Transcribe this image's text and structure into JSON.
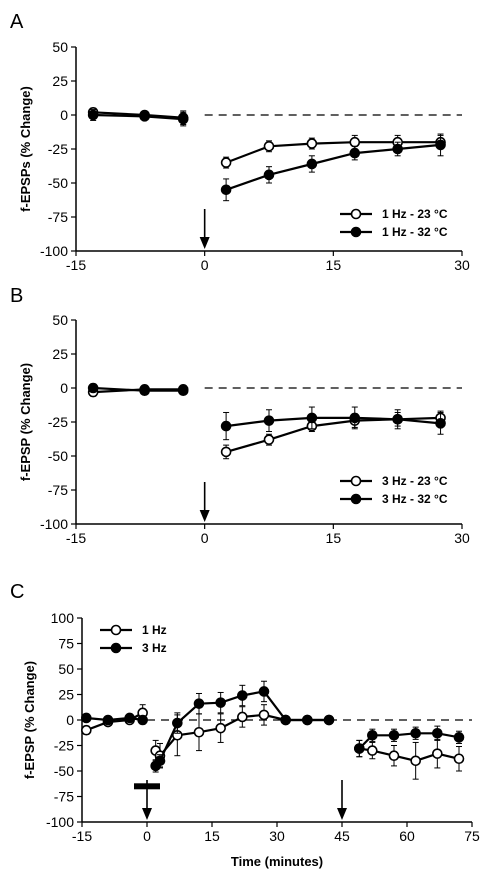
{
  "figure": {
    "background": "#ffffff",
    "ink": "#000000",
    "open_marker_fill": "#ffffff",
    "filled_marker_fill": "#000000"
  },
  "chart_data": [
    {
      "panel": "A",
      "type": "line",
      "xlabel": "",
      "ylabel": "f-EPSPs (% Change)",
      "xlim": [
        -15,
        30
      ],
      "ylim": [
        -100,
        50
      ],
      "xticks": [
        "-15",
        "0",
        "15",
        "30"
      ],
      "yticks": [
        "50",
        "25",
        "0",
        "-25",
        "-50",
        "-75",
        "-100"
      ],
      "baseline_dashed_at": 0,
      "arrows": [
        0
      ],
      "legend_position": "bottom-right",
      "series": [
        {
          "name": "1 Hz - 23 °C",
          "marker": "open-circle",
          "x": [
            -13,
            -7,
            -2.5,
            2.5,
            7.5,
            12.5,
            17.5,
            22.5,
            27.5
          ],
          "y": [
            2,
            0,
            -2,
            -35,
            -23,
            -21,
            -20,
            -20,
            -20
          ],
          "err": [
            3,
            2,
            5,
            4,
            4,
            4,
            5,
            5,
            5
          ]
        },
        {
          "name": "1 Hz - 32 °C",
          "marker": "filled-circle",
          "x": [
            -13,
            -7,
            -2.5,
            2.5,
            7.5,
            12.5,
            17.5,
            22.5,
            27.5
          ],
          "y": [
            0,
            -1,
            -3,
            -55,
            -44,
            -36,
            -28,
            -25,
            -22
          ],
          "err": [
            4,
            2,
            5,
            8,
            6,
            6,
            5,
            5,
            8
          ]
        }
      ]
    },
    {
      "panel": "B",
      "type": "line",
      "xlabel": "",
      "ylabel": "f-EPSP (% Change)",
      "xlim": [
        -15,
        30
      ],
      "ylim": [
        -100,
        50
      ],
      "xticks": [
        "-15",
        "0",
        "15",
        "30"
      ],
      "yticks": [
        "50",
        "25",
        "0",
        "-25",
        "-50",
        "-75",
        "-100"
      ],
      "baseline_dashed_at": 0,
      "arrows": [
        0
      ],
      "legend_position": "bottom-right",
      "series": [
        {
          "name": "3 Hz - 23 °C",
          "marker": "open-circle",
          "x": [
            -13,
            -7,
            -2.5,
            2.5,
            7.5,
            12.5,
            17.5,
            22.5,
            27.5
          ],
          "y": [
            -3,
            -1,
            -1,
            -47,
            -38,
            -28,
            -24,
            -23,
            -22
          ],
          "err": [
            3,
            2,
            2,
            5,
            4,
            4,
            5,
            5,
            5
          ]
        },
        {
          "name": "3 Hz - 32 °C",
          "marker": "filled-circle",
          "x": [
            -13,
            -7,
            -2.5,
            2.5,
            7.5,
            12.5,
            17.5,
            22.5,
            27.5
          ],
          "y": [
            0,
            -2,
            -2,
            -28,
            -24,
            -22,
            -22,
            -23,
            -26
          ],
          "err": [
            3,
            2,
            2,
            10,
            8,
            8,
            8,
            7,
            8
          ]
        }
      ]
    },
    {
      "panel": "C",
      "type": "line",
      "xlabel": "Time (minutes)",
      "ylabel": "f-EPSP (% Change)",
      "xlim": [
        -15,
        75
      ],
      "ylim": [
        -100,
        100
      ],
      "xticks": [
        "-15",
        "0",
        "15",
        "30",
        "45",
        "60",
        "75"
      ],
      "yticks": [
        "100",
        "75",
        "50",
        "25",
        "0",
        "-25",
        "-50",
        "-75",
        "-100"
      ],
      "baseline_dashed_at": 0,
      "arrows": [
        0,
        45
      ],
      "stimulus_bar": {
        "x": [
          -3,
          3
        ],
        "y": -65
      },
      "legend_position": "top-left",
      "series": [
        {
          "name": "1 Hz",
          "marker": "open-circle",
          "x": [
            -14,
            -9,
            -4,
            -1,
            2,
            3,
            7,
            12,
            17,
            22,
            27,
            32,
            37,
            42,
            49,
            52,
            57,
            62,
            67,
            72
          ],
          "y": [
            -10,
            -2,
            0,
            7,
            -30,
            -35,
            -15,
            -12,
            -8,
            3,
            5,
            0,
            0,
            0,
            -28,
            -30,
            -35,
            -40,
            -33,
            -38
          ],
          "err": [
            4,
            3,
            2,
            8,
            10,
            12,
            20,
            18,
            14,
            10,
            10,
            2,
            2,
            2,
            8,
            8,
            10,
            18,
            14,
            12
          ]
        },
        {
          "name": "3 Hz",
          "marker": "filled-circle",
          "x": [
            -14,
            -9,
            -4,
            -1,
            2,
            3,
            7,
            12,
            17,
            22,
            27,
            32,
            37,
            42,
            49,
            52,
            57,
            62,
            67,
            72
          ],
          "y": [
            2,
            0,
            2,
            0,
            -45,
            -40,
            -3,
            16,
            17,
            24,
            28,
            0,
            0,
            0,
            -28,
            -15,
            -15,
            -13,
            -13,
            -17
          ],
          "err": [
            3,
            3,
            3,
            4,
            6,
            6,
            10,
            10,
            10,
            10,
            10,
            2,
            2,
            2,
            8,
            6,
            6,
            6,
            7,
            6
          ]
        }
      ]
    }
  ]
}
